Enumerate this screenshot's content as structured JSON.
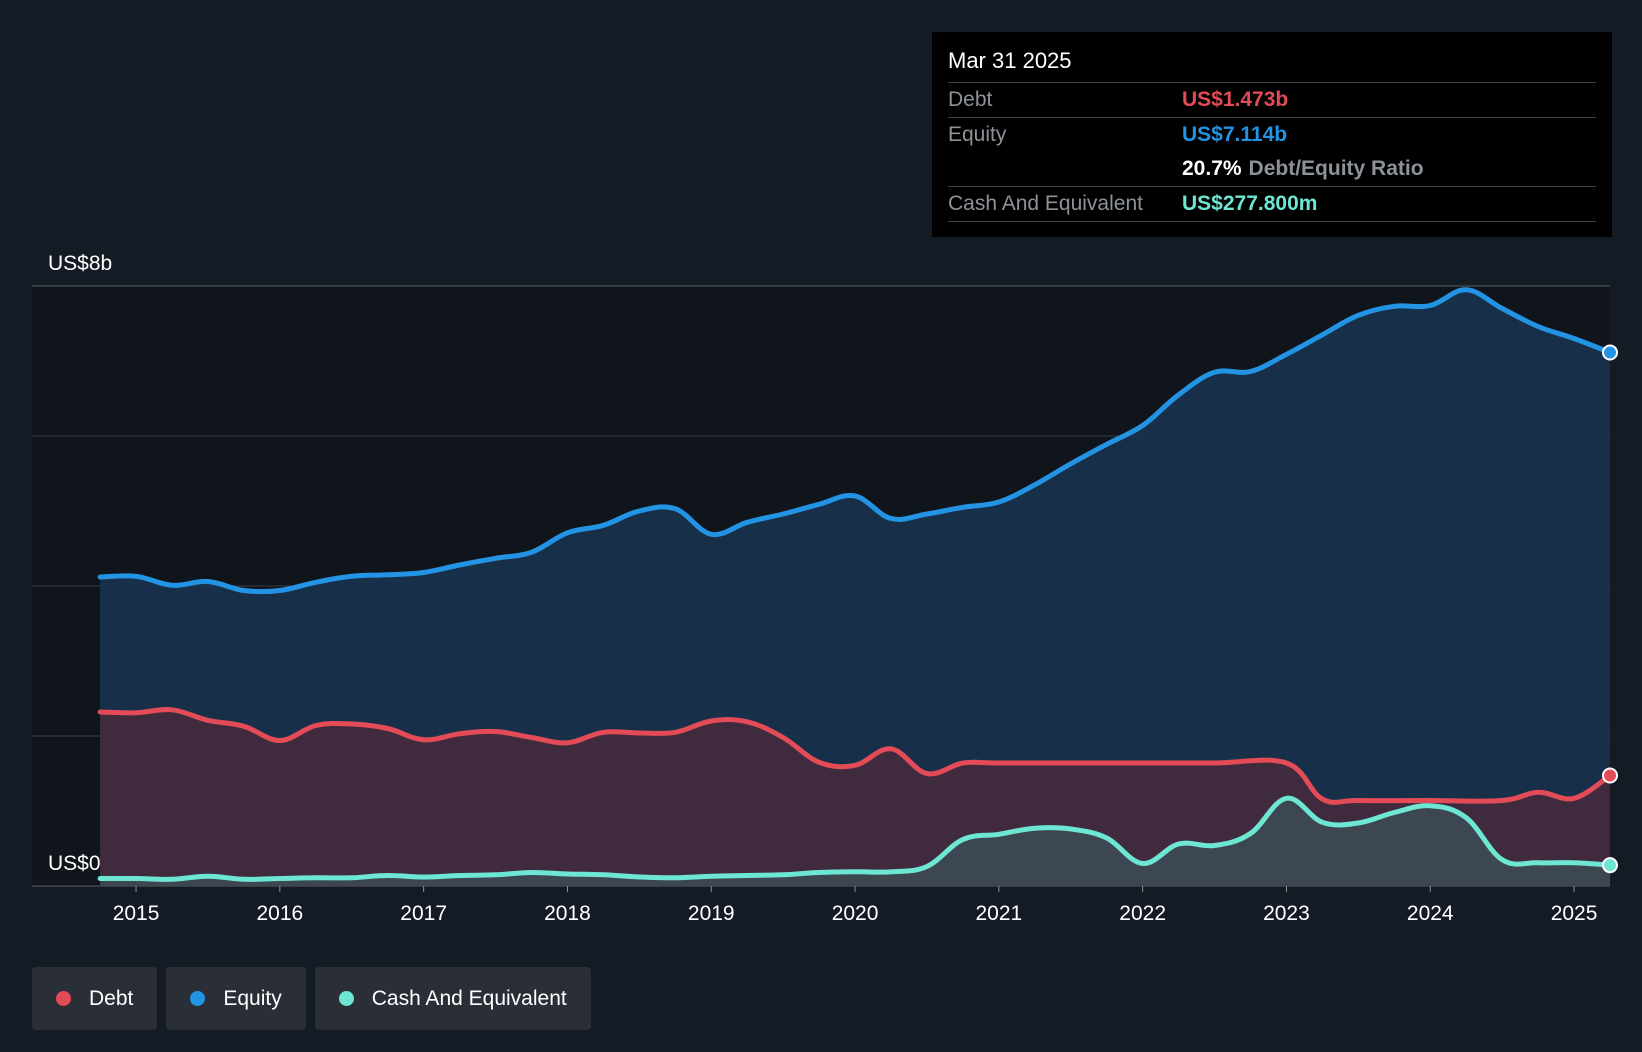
{
  "colors": {
    "background": "#151b24",
    "plot_background": "#10141b",
    "debt": "#e34b57",
    "equity": "#2394e4",
    "cash": "#6ee6d4",
    "grid": "#3a3f47",
    "tooltip_label": "#8d9299"
  },
  "tooltip": {
    "date": "Mar 31 2025",
    "debt_label": "Debt",
    "debt_value": "US$1.473b",
    "equity_label": "Equity",
    "equity_value": "US$7.114b",
    "ratio_value": "20.7%",
    "ratio_label": "Debt/Equity Ratio",
    "cash_label": "Cash And Equivalent",
    "cash_value": "US$277.800m"
  },
  "legend": [
    {
      "label": "Debt",
      "color": "#e34b57"
    },
    {
      "label": "Equity",
      "color": "#2394e4"
    },
    {
      "label": "Cash And Equivalent",
      "color": "#6ee6d4"
    }
  ],
  "chart_data": {
    "type": "area",
    "title": "",
    "xlabel": "",
    "ylabel": "",
    "unit": "US$ billions",
    "xlim": [
      2014.45,
      2025.25
    ],
    "ylim": [
      0,
      8
    ],
    "y_axis_labels": [
      {
        "value": 8,
        "text": "US$8b"
      },
      {
        "value": 0,
        "text": "US$0"
      }
    ],
    "gridlines": [
      0,
      2,
      4,
      6,
      8
    ],
    "x_ticks": [
      2015,
      2016,
      2017,
      2018,
      2019,
      2020,
      2021,
      2022,
      2023,
      2024,
      2025
    ],
    "x_tick_labels": [
      "2015",
      "2016",
      "2017",
      "2018",
      "2019",
      "2020",
      "2021",
      "2022",
      "2023",
      "2024",
      "2025"
    ],
    "series": [
      {
        "name": "Equity",
        "color": "#2394e4",
        "points": [
          [
            2014.75,
            4.12
          ],
          [
            2015.0,
            4.13
          ],
          [
            2015.25,
            4.01
          ],
          [
            2015.5,
            4.06
          ],
          [
            2015.75,
            3.94
          ],
          [
            2016.0,
            3.94
          ],
          [
            2016.25,
            4.05
          ],
          [
            2016.5,
            4.13
          ],
          [
            2016.75,
            4.15
          ],
          [
            2017.0,
            4.18
          ],
          [
            2017.25,
            4.28
          ],
          [
            2017.5,
            4.37
          ],
          [
            2017.75,
            4.45
          ],
          [
            2018.0,
            4.71
          ],
          [
            2018.25,
            4.81
          ],
          [
            2018.5,
            5.0
          ],
          [
            2018.75,
            5.03
          ],
          [
            2019.0,
            4.69
          ],
          [
            2019.25,
            4.85
          ],
          [
            2019.5,
            4.96
          ],
          [
            2019.75,
            5.09
          ],
          [
            2020.0,
            5.2
          ],
          [
            2020.25,
            4.9
          ],
          [
            2020.5,
            4.96
          ],
          [
            2020.75,
            5.05
          ],
          [
            2021.0,
            5.12
          ],
          [
            2021.25,
            5.35
          ],
          [
            2021.5,
            5.63
          ],
          [
            2021.75,
            5.89
          ],
          [
            2022.0,
            6.14
          ],
          [
            2022.25,
            6.55
          ],
          [
            2022.5,
            6.85
          ],
          [
            2022.75,
            6.86
          ],
          [
            2023.0,
            7.09
          ],
          [
            2023.25,
            7.35
          ],
          [
            2023.5,
            7.61
          ],
          [
            2023.75,
            7.73
          ],
          [
            2024.0,
            7.74
          ],
          [
            2024.25,
            7.95
          ],
          [
            2024.5,
            7.7
          ],
          [
            2024.75,
            7.46
          ],
          [
            2025.0,
            7.3
          ],
          [
            2025.25,
            7.114
          ]
        ]
      },
      {
        "name": "Debt",
        "color": "#e34b57",
        "points": [
          [
            2014.75,
            2.32
          ],
          [
            2015.0,
            2.31
          ],
          [
            2015.25,
            2.35
          ],
          [
            2015.5,
            2.21
          ],
          [
            2015.75,
            2.13
          ],
          [
            2016.0,
            1.94
          ],
          [
            2016.25,
            2.14
          ],
          [
            2016.5,
            2.16
          ],
          [
            2016.75,
            2.1
          ],
          [
            2017.0,
            1.95
          ],
          [
            2017.25,
            2.03
          ],
          [
            2017.5,
            2.06
          ],
          [
            2017.75,
            1.98
          ],
          [
            2018.0,
            1.91
          ],
          [
            2018.25,
            2.05
          ],
          [
            2018.5,
            2.04
          ],
          [
            2018.75,
            2.05
          ],
          [
            2019.0,
            2.2
          ],
          [
            2019.25,
            2.19
          ],
          [
            2019.5,
            1.98
          ],
          [
            2019.75,
            1.65
          ],
          [
            2020.0,
            1.61
          ],
          [
            2020.25,
            1.83
          ],
          [
            2020.5,
            1.5
          ],
          [
            2020.75,
            1.64
          ],
          [
            2021.0,
            1.64
          ],
          [
            2021.5,
            1.64
          ],
          [
            2022.0,
            1.64
          ],
          [
            2022.5,
            1.64
          ],
          [
            2023.0,
            1.64
          ],
          [
            2023.25,
            1.16
          ],
          [
            2023.5,
            1.14
          ],
          [
            2024.0,
            1.14
          ],
          [
            2024.5,
            1.14
          ],
          [
            2024.75,
            1.25
          ],
          [
            2025.0,
            1.17
          ],
          [
            2025.25,
            1.473
          ]
        ]
      },
      {
        "name": "Cash And Equivalent",
        "color": "#6ee6d4",
        "points": [
          [
            2014.75,
            0.1
          ],
          [
            2015.0,
            0.1
          ],
          [
            2015.25,
            0.09
          ],
          [
            2015.5,
            0.13
          ],
          [
            2015.75,
            0.09
          ],
          [
            2016.0,
            0.1
          ],
          [
            2016.25,
            0.11
          ],
          [
            2016.5,
            0.11
          ],
          [
            2016.75,
            0.14
          ],
          [
            2017.0,
            0.12
          ],
          [
            2017.25,
            0.14
          ],
          [
            2017.5,
            0.15
          ],
          [
            2017.75,
            0.18
          ],
          [
            2018.0,
            0.16
          ],
          [
            2018.25,
            0.15
          ],
          [
            2018.5,
            0.12
          ],
          [
            2018.75,
            0.11
          ],
          [
            2019.0,
            0.13
          ],
          [
            2019.25,
            0.14
          ],
          [
            2019.5,
            0.15
          ],
          [
            2019.75,
            0.18
          ],
          [
            2020.0,
            0.19
          ],
          [
            2020.25,
            0.19
          ],
          [
            2020.5,
            0.26
          ],
          [
            2020.75,
            0.62
          ],
          [
            2021.0,
            0.69
          ],
          [
            2021.25,
            0.77
          ],
          [
            2021.5,
            0.76
          ],
          [
            2021.75,
            0.64
          ],
          [
            2022.0,
            0.3
          ],
          [
            2022.25,
            0.56
          ],
          [
            2022.5,
            0.54
          ],
          [
            2022.75,
            0.7
          ],
          [
            2023.0,
            1.17
          ],
          [
            2023.25,
            0.85
          ],
          [
            2023.5,
            0.84
          ],
          [
            2023.75,
            0.98
          ],
          [
            2024.0,
            1.07
          ],
          [
            2024.25,
            0.91
          ],
          [
            2024.5,
            0.35
          ],
          [
            2024.75,
            0.31
          ],
          [
            2025.0,
            0.31
          ],
          [
            2025.25,
            0.2778
          ]
        ]
      }
    ]
  }
}
